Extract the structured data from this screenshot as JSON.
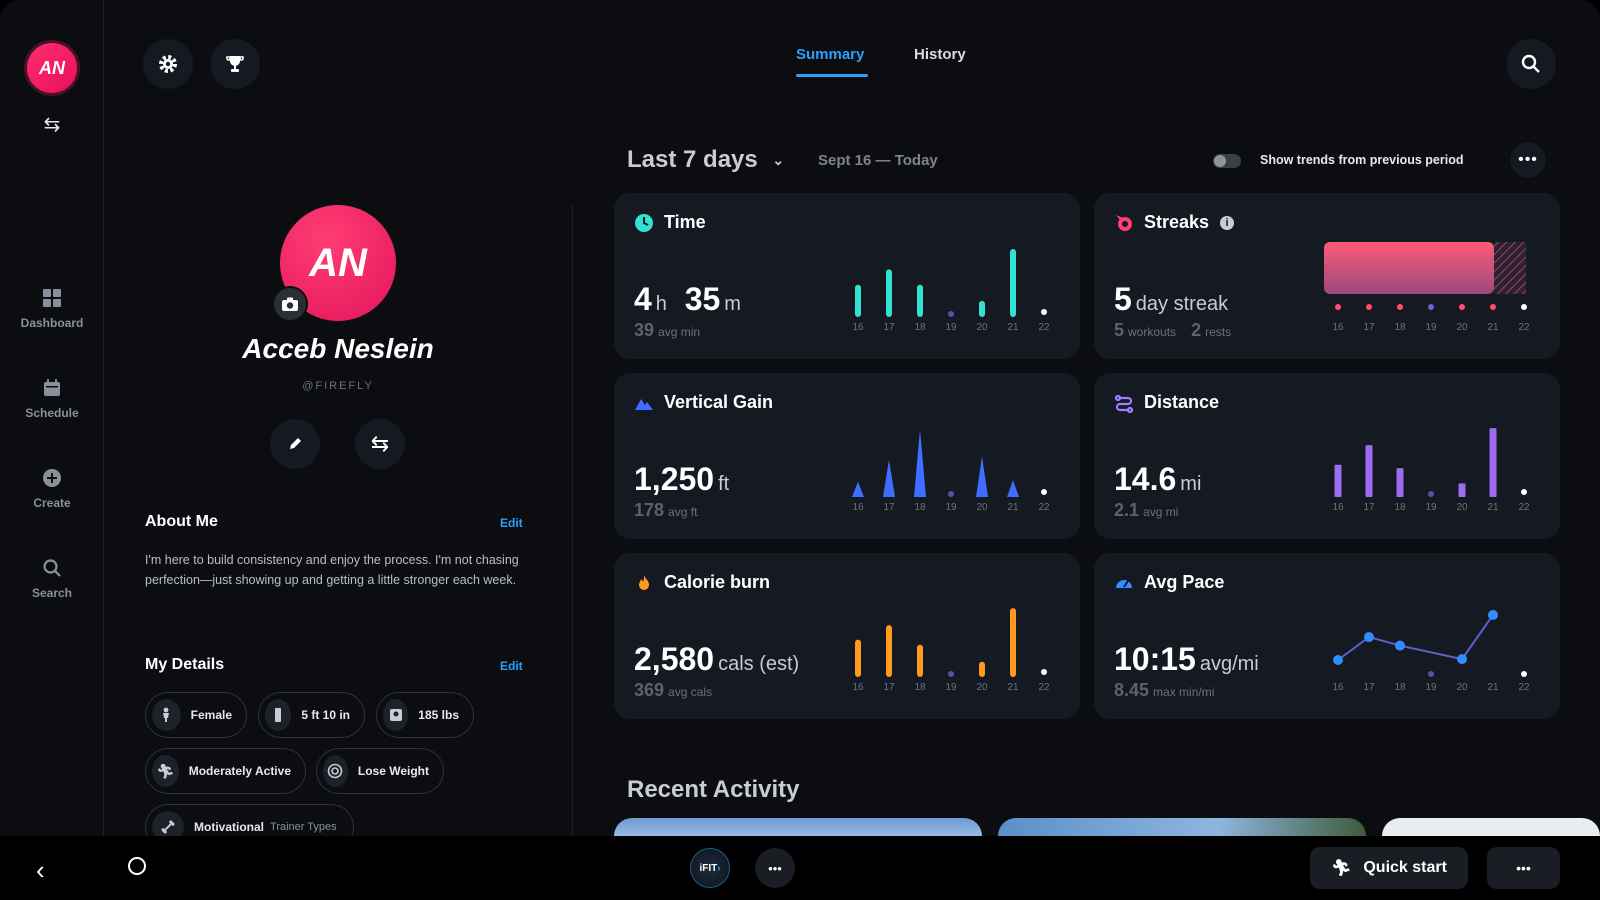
{
  "user": {
    "initials": "AN",
    "name": "Acceb Neslein",
    "handle": "@FIREFLY"
  },
  "rail": {
    "items": [
      {
        "label": "Dashboard",
        "icon": "grid-icon"
      },
      {
        "label": "Schedule",
        "icon": "calendar-icon"
      },
      {
        "label": "Create",
        "icon": "plus-circle-icon"
      },
      {
        "label": "Search",
        "icon": "search-icon"
      }
    ]
  },
  "header": {
    "tabs": [
      "Summary",
      "History"
    ],
    "active_tab": "Summary"
  },
  "about": {
    "title": "About Me",
    "edit": "Edit",
    "text": "I'm here to build consistency and enjoy the process. I'm not chasing perfection—just showing up and getting a little stronger each week."
  },
  "details": {
    "title": "My Details",
    "edit": "Edit",
    "pills": [
      {
        "label": "Female",
        "icon": "person-icon"
      },
      {
        "label": "5 ft 10 in",
        "icon": "ruler-icon"
      },
      {
        "label": "185 lbs",
        "icon": "scale-icon"
      },
      {
        "label": "Moderately Active",
        "icon": "running-icon"
      },
      {
        "label": "Lose Weight",
        "icon": "target-icon"
      },
      {
        "label": "Motivational",
        "sub": "Trainer Types",
        "icon": "dumbbell-icon"
      }
    ]
  },
  "summary": {
    "period": "Last 7 days",
    "range": "Sept 16 — Today",
    "toggle_label": "Show trends from previous period",
    "toggle_on": false
  },
  "days": [
    "16",
    "17",
    "18",
    "19",
    "20",
    "21",
    "22"
  ],
  "cards": {
    "time": {
      "title": "Time",
      "v1": "4",
      "u1": "h",
      "v2": "35",
      "u2": "m",
      "sub_value": "39",
      "sub_unit": "avg min",
      "color": "#2fe3d0"
    },
    "streaks": {
      "title": "Streaks",
      "value": "5",
      "unit": "day streak",
      "workouts_value": "5",
      "workouts_label": "workouts",
      "rests_value": "2",
      "rests_label": "rests"
    },
    "vertical": {
      "title": "Vertical Gain",
      "value": "1,250",
      "unit": "ft",
      "sub_value": "178",
      "sub_unit": "avg ft",
      "color": "#3f6dff"
    },
    "distance": {
      "title": "Distance",
      "value": "14.6",
      "unit": "mi",
      "sub_value": "2.1",
      "sub_unit": "avg mi",
      "color": "#a77bff"
    },
    "calorie": {
      "title": "Calorie burn",
      "value": "2,580",
      "unit": "cals (est)",
      "sub_value": "369",
      "sub_unit": "avg cals",
      "color": "#ff9a1f"
    },
    "pace": {
      "title": "Avg Pace",
      "value": "10:15",
      "unit": "avg/mi",
      "sub_value": "8.45",
      "sub_unit": "max min/mi",
      "color": "#2f8dff"
    }
  },
  "recent": {
    "title": "Recent Activity"
  },
  "bottom": {
    "quick_start": "Quick start",
    "brand": "iFIT"
  },
  "chart_data": [
    {
      "type": "bar",
      "title": "Time",
      "categories": [
        "16",
        "17",
        "18",
        "19",
        "20",
        "21",
        "22"
      ],
      "values": [
        38,
        56,
        38,
        0,
        19,
        80,
        0
      ]
    },
    {
      "type": "bar",
      "title": "Vertical Gain",
      "categories": [
        "16",
        "17",
        "18",
        "19",
        "20",
        "21",
        "22"
      ],
      "values": [
        18,
        44,
        80,
        0,
        48,
        20,
        0
      ]
    },
    {
      "type": "bar",
      "title": "Distance",
      "categories": [
        "16",
        "17",
        "18",
        "19",
        "20",
        "21",
        "22"
      ],
      "values": [
        38,
        61,
        34,
        0,
        16,
        81,
        0
      ]
    },
    {
      "type": "bar",
      "title": "Calorie burn",
      "categories": [
        "16",
        "17",
        "18",
        "19",
        "20",
        "21",
        "22"
      ],
      "values": [
        44,
        61,
        38,
        0,
        18,
        81,
        0
      ]
    },
    {
      "type": "line",
      "title": "Avg Pace",
      "categories": [
        "16",
        "17",
        "18",
        "19",
        "20",
        "21",
        "22"
      ],
      "values": [
        20,
        47,
        37,
        null,
        21,
        73,
        null
      ]
    }
  ]
}
